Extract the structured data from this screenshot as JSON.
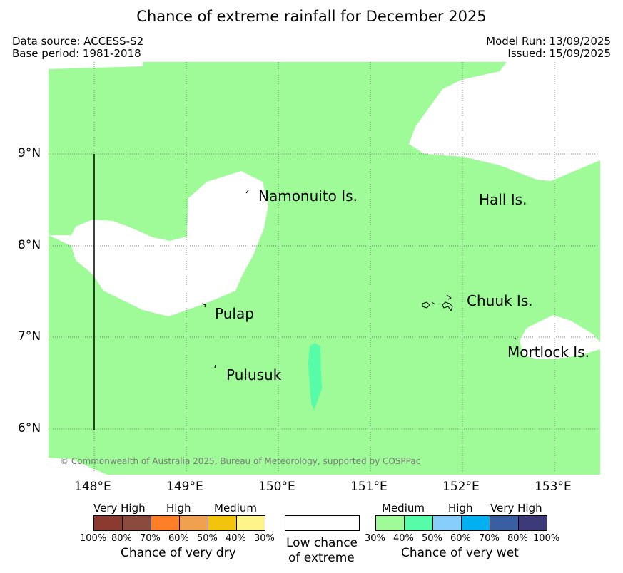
{
  "title": "Chance of extreme rainfall for December 2025",
  "meta": {
    "data_source": "Data source: ACCESS-S2",
    "base_period": "Base period: 1981-2018",
    "model_run": "Model Run: 13/09/2025",
    "issued": "Issued: 15/09/2025"
  },
  "map": {
    "latitude_labels": [
      "9°N",
      "8°N",
      "7°N",
      "6°N"
    ],
    "longitude_labels": [
      "148°E",
      "149°E",
      "150°E",
      "151°E",
      "152°E",
      "153°E"
    ],
    "places": {
      "namonuito": "Namonuito Is.",
      "hall": "Hall Is.",
      "pulap": "Pulap",
      "chuuk": "Chuuk Is.",
      "mortlock": "Mortlock Is.",
      "pulusuk": "Pulusuk"
    },
    "copyright": "© Commonwealth of Australia 2025, Bureau of Meteorology, supported by COSPPac",
    "colors": {
      "medium_wet": "#9efb97",
      "high_wet": "#56fca7",
      "land_or_low": "#ffffff"
    }
  },
  "legend": {
    "dry": {
      "category_labels": {
        "very_high": "Very High",
        "high": "High",
        "medium": "Medium"
      },
      "percent_labels": [
        "100%",
        "80%",
        "70%",
        "60%",
        "50%",
        "40%",
        "30%"
      ],
      "title": "Chance of very dry",
      "colors": [
        "#8b3a30",
        "#8b4a3e",
        "#ff7f27",
        "#f0a050",
        "#f2c40a",
        "#fff48a"
      ]
    },
    "low": {
      "line1": "Low chance",
      "line2": "of extreme"
    },
    "wet": {
      "category_labels": {
        "medium": "Medium",
        "high": "High",
        "very_high": "Very High"
      },
      "percent_labels": [
        "30%",
        "40%",
        "50%",
        "60%",
        "70%",
        "80%",
        "100%"
      ],
      "title": "Chance of very wet",
      "colors": [
        "#9efb97",
        "#56fca7",
        "#87cefa",
        "#00b0f0",
        "#3a5fa0",
        "#3c3a78"
      ]
    }
  }
}
